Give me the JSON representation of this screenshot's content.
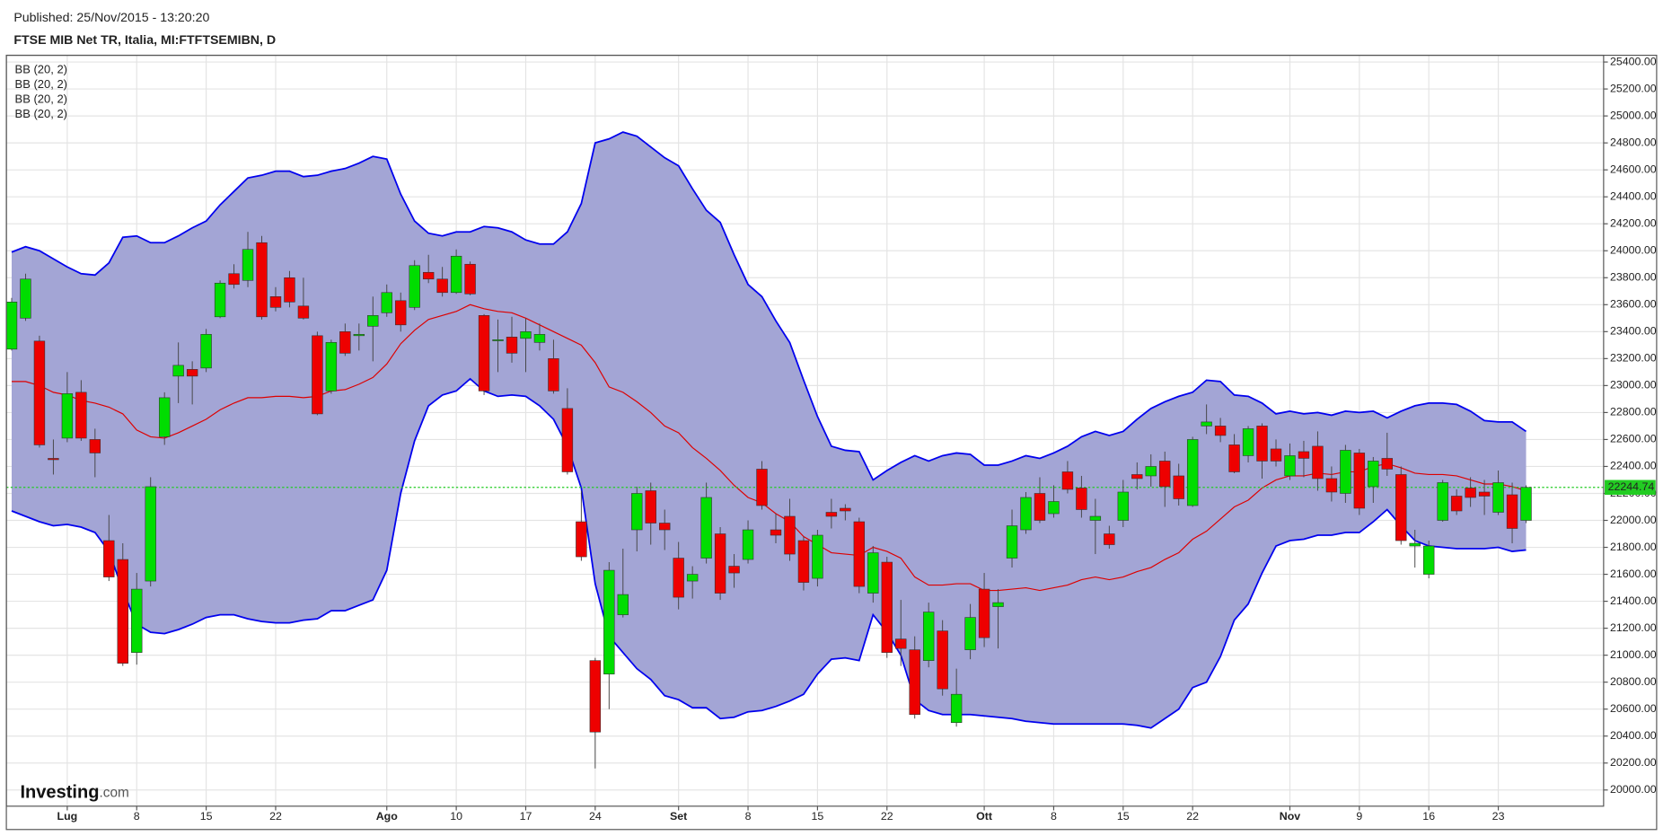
{
  "chart_data": {
    "type": "candlestick",
    "published": "Published: 25/Nov/2015 - 13:20:20",
    "title": "FTSE MIB Net TR, Italia, MI:FTFTSEMIBN, D",
    "legend": [
      "BB (20, 2)",
      "BB (20, 2)",
      "BB (20, 2)",
      "BB (20, 2)"
    ],
    "logo": {
      "name": "Investing",
      "suffix": ".com"
    },
    "categories": [
      null,
      null,
      null,
      null,
      "Lug",
      null,
      null,
      null,
      null,
      "8",
      null,
      null,
      null,
      null,
      "15",
      null,
      null,
      null,
      null,
      "22",
      null,
      null,
      null,
      null,
      null,
      null,
      null,
      "Ago",
      null,
      null,
      null,
      null,
      "10",
      null,
      null,
      null,
      null,
      "17",
      null,
      null,
      null,
      null,
      "24",
      null,
      null,
      null,
      null,
      null,
      "Set",
      null,
      null,
      null,
      null,
      "8",
      null,
      null,
      null,
      null,
      "15",
      null,
      null,
      null,
      null,
      "22",
      null,
      null,
      null,
      null,
      null,
      null,
      "Ott",
      null,
      null,
      null,
      null,
      "8",
      null,
      null,
      null,
      null,
      "15",
      null,
      null,
      null,
      null,
      "22",
      null,
      null,
      null,
      null,
      null,
      null,
      "Nov",
      null,
      null,
      null,
      null,
      "9",
      null,
      null,
      null,
      null,
      "16",
      null,
      null,
      null,
      null,
      "23",
      null,
      null
    ],
    "open": [
      23270,
      23500,
      23330,
      22460,
      22610,
      22950,
      22600,
      21850,
      21710,
      21020,
      21550,
      22620,
      23070,
      23120,
      23130,
      23510,
      23830,
      23780,
      24060,
      23660,
      23800,
      23590,
      23370,
      22960,
      23400,
      23370,
      23440,
      23540,
      23630,
      23580,
      23840,
      23790,
      23690,
      23900,
      23520,
      23340,
      23360,
      23350,
      23320,
      23200,
      22830,
      21990,
      20960,
      20860,
      21300,
      21930,
      22220,
      21980,
      21720,
      21550,
      21720,
      21900,
      21660,
      21710,
      22380,
      21930,
      22030,
      21850,
      21570,
      22060,
      22090,
      21990,
      21460,
      21690,
      21120,
      21040,
      20960,
      21180,
      20500,
      21040,
      21490,
      21360,
      21720,
      21930,
      22200,
      22050,
      22360,
      22240,
      22000,
      21900,
      22000,
      22340,
      22330,
      22440,
      22330,
      22110,
      22700,
      22700,
      22560,
      22480,
      22700,
      22530,
      22330,
      22510,
      22550,
      22310,
      22200,
      22500,
      22250,
      22460,
      22340,
      21810,
      21600,
      22000,
      22180,
      22240,
      22210,
      22060,
      22190,
      22000
    ],
    "high": [
      23650,
      23830,
      23370,
      22600,
      23100,
      23040,
      22680,
      22040,
      21830,
      21610,
      22320,
      22950,
      23320,
      23180,
      23420,
      23780,
      23900,
      24140,
      24110,
      23730,
      23850,
      23800,
      23400,
      23340,
      23460,
      23460,
      23660,
      23750,
      23690,
      23930,
      23970,
      23880,
      24010,
      23920,
      23530,
      23490,
      23510,
      23500,
      23460,
      23340,
      22980,
      22220,
      20980,
      21690,
      21790,
      22250,
      22280,
      22080,
      21840,
      21660,
      22280,
      21950,
      21750,
      22000,
      22440,
      22050,
      22160,
      21880,
      21930,
      22160,
      22120,
      22020,
      21810,
      21730,
      21410,
      21140,
      21390,
      21260,
      20900,
      21380,
      21610,
      21490,
      22080,
      22210,
      22320,
      22260,
      22440,
      22330,
      22160,
      21960,
      22300,
      22430,
      22490,
      22510,
      22420,
      22620,
      22860,
      22760,
      22640,
      22700,
      22720,
      22600,
      22570,
      22590,
      22660,
      22400,
      22560,
      22530,
      22470,
      22650,
      22400,
      21930,
      21850,
      22300,
      22230,
      22320,
      22300,
      22370,
      22280,
      22260
    ],
    "low": [
      23260,
      23480,
      22540,
      22340,
      22580,
      22590,
      22320,
      21550,
      20920,
      20930,
      21510,
      22560,
      22870,
      22860,
      23100,
      23500,
      23720,
      23730,
      23490,
      23550,
      23580,
      23490,
      22780,
      22940,
      23220,
      23260,
      23180,
      23510,
      23400,
      23560,
      23760,
      23660,
      23680,
      23670,
      22930,
      23100,
      23170,
      23100,
      23260,
      22940,
      22340,
      21700,
      20160,
      20600,
      21280,
      21770,
      21820,
      21780,
      21340,
      21420,
      21680,
      21410,
      21500,
      21680,
      22080,
      21830,
      21700,
      21480,
      21510,
      21940,
      22000,
      21460,
      21390,
      20980,
      20920,
      20530,
      20910,
      20700,
      20470,
      20970,
      21060,
      21050,
      21650,
      21900,
      21980,
      22020,
      22200,
      22020,
      21750,
      21790,
      21950,
      22230,
      22250,
      22100,
      22110,
      22100,
      22640,
      22580,
      22350,
      22430,
      22310,
      22400,
      22300,
      22320,
      22220,
      22140,
      22130,
      22040,
      22130,
      22330,
      21820,
      21650,
      21570,
      21990,
      22040,
      22100,
      22040,
      22040,
      21830,
      21980
    ],
    "close": [
      23620,
      23790,
      22560,
      22450,
      22940,
      22610,
      22500,
      21580,
      20940,
      21490,
      22250,
      22910,
      23150,
      23070,
      23380,
      23760,
      23750,
      24010,
      23510,
      23580,
      23620,
      23500,
      22790,
      23320,
      23240,
      23380,
      23520,
      23690,
      23450,
      23890,
      23790,
      23690,
      23960,
      23680,
      22960,
      23340,
      23240,
      23400,
      23380,
      22960,
      22360,
      21730,
      20430,
      21630,
      21450,
      22200,
      21980,
      21930,
      21430,
      21600,
      22170,
      21460,
      21610,
      21930,
      22110,
      21890,
      21750,
      21540,
      21890,
      22030,
      22070,
      21510,
      21760,
      21020,
      21050,
      20560,
      21320,
      20750,
      20710,
      21280,
      21130,
      21390,
      21960,
      22170,
      22000,
      22140,
      22230,
      22080,
      22030,
      21820,
      22210,
      22310,
      22400,
      22250,
      22160,
      22600,
      22730,
      22630,
      22360,
      22680,
      22440,
      22440,
      22480,
      22460,
      22310,
      22210,
      22520,
      22090,
      22440,
      22380,
      21850,
      21830,
      21810,
      22280,
      22070,
      22170,
      22180,
      22280,
      21940,
      22244.74
    ],
    "up_color": "#00dd00",
    "down_color": "#ee0000",
    "bollinger": {
      "fill_color": "#a3a5d5",
      "upper": {
        "color": "#0000ee",
        "values": [
          23990,
          24030,
          24000,
          23940,
          23880,
          23830,
          23820,
          23910,
          24100,
          24110,
          24060,
          24060,
          24110,
          24170,
          24220,
          24340,
          24440,
          24540,
          24560,
          24590,
          24590,
          24550,
          24560,
          24590,
          24610,
          24650,
          24700,
          24680,
          24420,
          24220,
          24130,
          24110,
          24140,
          24140,
          24180,
          24170,
          24140,
          24080,
          24050,
          24050,
          24140,
          24350,
          24800,
          24830,
          24880,
          24850,
          24770,
          24690,
          24630,
          24460,
          24300,
          24210,
          23970,
          23750,
          23660,
          23480,
          23320,
          23040,
          22770,
          22550,
          22520,
          22510,
          22300,
          22370,
          22430,
          22480,
          22440,
          22480,
          22500,
          22490,
          22410,
          22410,
          22440,
          22480,
          22460,
          22500,
          22550,
          22620,
          22660,
          22630,
          22660,
          22750,
          22830,
          22880,
          22920,
          22950,
          23040,
          23030,
          22930,
          22920,
          22870,
          22790,
          22810,
          22790,
          22800,
          22780,
          22810,
          22800,
          22810,
          22760,
          22810,
          22850,
          22870,
          22870,
          22860,
          22810,
          22740,
          22730,
          22730,
          22660
        ]
      },
      "middle": {
        "color": "#dd0000",
        "values": [
          23030,
          23030,
          23000,
          22950,
          22930,
          22890,
          22870,
          22840,
          22790,
          22670,
          22620,
          22610,
          22650,
          22700,
          22750,
          22820,
          22870,
          22910,
          22910,
          22920,
          22920,
          22910,
          22920,
          22960,
          22970,
          23010,
          23060,
          23160,
          23310,
          23410,
          23490,
          23520,
          23550,
          23600,
          23570,
          23550,
          23540,
          23500,
          23450,
          23400,
          23350,
          23300,
          23170,
          22990,
          22950,
          22880,
          22800,
          22700,
          22650,
          22540,
          22460,
          22370,
          22260,
          22170,
          22130,
          22050,
          21990,
          21880,
          21820,
          21760,
          21750,
          21740,
          21800,
          21770,
          21720,
          21580,
          21520,
          21520,
          21530,
          21530,
          21480,
          21480,
          21490,
          21500,
          21480,
          21500,
          21520,
          21560,
          21580,
          21560,
          21580,
          21620,
          21650,
          21710,
          21760,
          21860,
          21920,
          22010,
          22100,
          22150,
          22240,
          22300,
          22330,
          22330,
          22350,
          22340,
          22360,
          22360,
          22400,
          22420,
          22390,
          22350,
          22340,
          22340,
          22330,
          22300,
          22270,
          22270,
          22250,
          22220
        ]
      },
      "lower": {
        "color": "#0000ee",
        "values": [
          22070,
          22030,
          21990,
          21960,
          21970,
          21950,
          21910,
          21770,
          21480,
          21230,
          21170,
          21160,
          21190,
          21230,
          21280,
          21300,
          21300,
          21270,
          21250,
          21240,
          21240,
          21260,
          21270,
          21330,
          21330,
          21370,
          21410,
          21630,
          22200,
          22590,
          22850,
          22930,
          22960,
          23050,
          22960,
          22920,
          22930,
          22920,
          22850,
          22750,
          22550,
          22240,
          21530,
          21140,
          21020,
          20900,
          20820,
          20700,
          20670,
          20610,
          20610,
          20530,
          20540,
          20580,
          20590,
          20620,
          20660,
          20710,
          20860,
          20970,
          20980,
          20960,
          21300,
          21170,
          21000,
          20670,
          20590,
          20560,
          20560,
          20560,
          20550,
          20540,
          20530,
          20510,
          20500,
          20490,
          20490,
          20490,
          20490,
          20490,
          20490,
          20480,
          20460,
          20530,
          20600,
          20760,
          20800,
          20990,
          21260,
          21380,
          21610,
          21810,
          21850,
          21860,
          21890,
          21890,
          21910,
          21910,
          21990,
          22080,
          21960,
          21850,
          21810,
          21800,
          21790,
          21790,
          21790,
          21800,
          21770,
          21780
        ]
      }
    },
    "last_price": {
      "value": 22244.74,
      "label": "22244.74",
      "color": "#22cc22"
    },
    "ylim": [
      19880,
      25450
    ],
    "yticks": [
      {
        "value": 20000,
        "label": "20000.00"
      },
      {
        "value": 20200,
        "label": "20200.00"
      },
      {
        "value": 20400,
        "label": "20400.00"
      },
      {
        "value": 20600,
        "label": "20600.00"
      },
      {
        "value": 20800,
        "label": "20800.00"
      },
      {
        "value": 21000,
        "label": "21000.00"
      },
      {
        "value": 21200,
        "label": "21200.00"
      },
      {
        "value": 21400,
        "label": "21400.00"
      },
      {
        "value": 21600,
        "label": "21600.00"
      },
      {
        "value": 21800,
        "label": "21800.00"
      },
      {
        "value": 22000,
        "label": "22000.00"
      },
      {
        "value": 22200,
        "label": "22200.00"
      },
      {
        "value": 22400,
        "label": "22400.00"
      },
      {
        "value": 22600,
        "label": "22600.00"
      },
      {
        "value": 22800,
        "label": "22800.00"
      },
      {
        "value": 23000,
        "label": "23000.00"
      },
      {
        "value": 23200,
        "label": "23200.00"
      },
      {
        "value": 23400,
        "label": "23400.00"
      },
      {
        "value": 23600,
        "label": "23600.00"
      },
      {
        "value": 23800,
        "label": "23800.00"
      },
      {
        "value": 24000,
        "label": "24000.00"
      },
      {
        "value": 24200,
        "label": "24200.00"
      },
      {
        "value": 24400,
        "label": "24400.00"
      },
      {
        "value": 24600,
        "label": "24600.00"
      },
      {
        "value": 24800,
        "label": "24800.00"
      },
      {
        "value": 25000,
        "label": "25000.00"
      },
      {
        "value": 25200,
        "label": "25200.00"
      },
      {
        "value": 25400,
        "label": "25400.00"
      }
    ],
    "grid": true
  }
}
